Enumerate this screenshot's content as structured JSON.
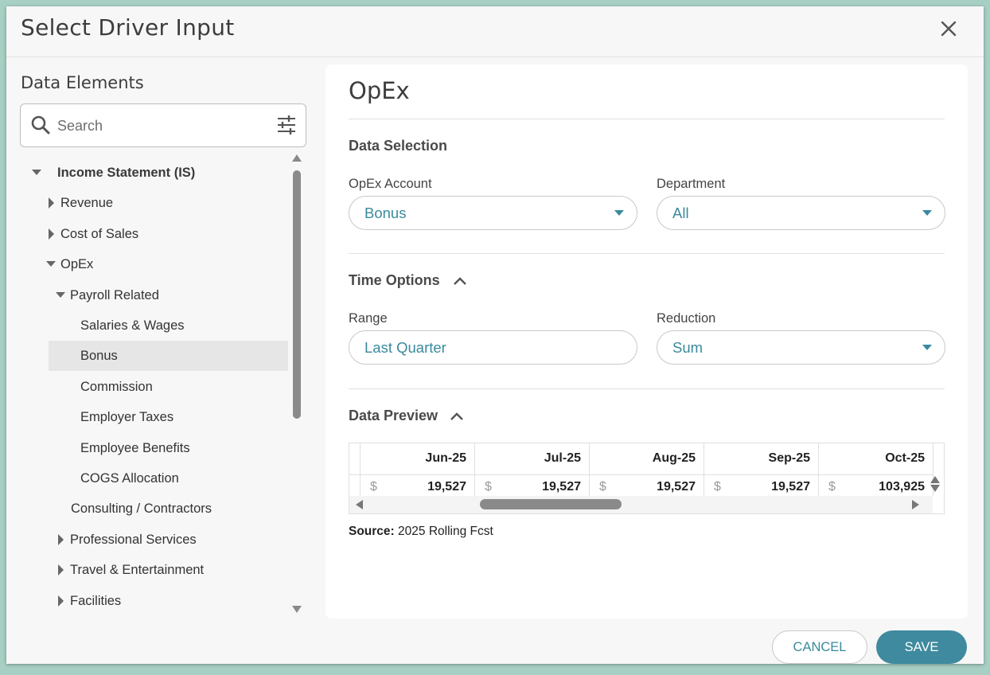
{
  "dialog": {
    "title": "Select Driver Input",
    "close_icon": "close-icon"
  },
  "left_panel": {
    "title": "Data Elements",
    "search": {
      "placeholder": "Search",
      "value": ""
    },
    "tree": [
      {
        "label": "Income Statement (IS)",
        "level": 0,
        "state": "expanded",
        "bold": true
      },
      {
        "label": "Revenue",
        "level": 1,
        "state": "collapsed"
      },
      {
        "label": "Cost of Sales",
        "level": 1,
        "state": "collapsed"
      },
      {
        "label": "OpEx",
        "level": 1,
        "state": "expanded"
      },
      {
        "label": "Payroll Related",
        "level": 2,
        "state": "expanded"
      },
      {
        "label": "Salaries & Wages",
        "level": 3,
        "state": "leaf"
      },
      {
        "label": "Bonus",
        "level": 3,
        "state": "leaf",
        "selected": true
      },
      {
        "label": "Commission",
        "level": 3,
        "state": "leaf"
      },
      {
        "label": "Employer Taxes",
        "level": 3,
        "state": "leaf"
      },
      {
        "label": "Employee Benefits",
        "level": 3,
        "state": "leaf"
      },
      {
        "label": "COGS Allocation",
        "level": 3,
        "state": "leaf"
      },
      {
        "label": "Consulting / Contractors",
        "level": 2,
        "state": "leaf"
      },
      {
        "label": "Professional Services",
        "level": 2,
        "state": "collapsed"
      },
      {
        "label": "Travel & Entertainment",
        "level": 2,
        "state": "collapsed"
      },
      {
        "label": "Facilities",
        "level": 2,
        "state": "collapsed"
      }
    ]
  },
  "right_panel": {
    "title": "OpEx",
    "data_selection": {
      "title": "Data Selection",
      "opex_account": {
        "label": "OpEx Account",
        "value": "Bonus"
      },
      "department": {
        "label": "Department",
        "value": "All"
      }
    },
    "time_options": {
      "title": "Time Options",
      "range": {
        "label": "Range",
        "value": "Last Quarter"
      },
      "reduction": {
        "label": "Reduction",
        "value": "Sum"
      }
    },
    "data_preview": {
      "title": "Data Preview",
      "columns": [
        {
          "month": "Jun-25",
          "currency": "$",
          "value": "19,527"
        },
        {
          "month": "Jul-25",
          "currency": "$",
          "value": "19,527"
        },
        {
          "month": "Aug-25",
          "currency": "$",
          "value": "19,527"
        },
        {
          "month": "Sep-25",
          "currency": "$",
          "value": "19,527"
        },
        {
          "month": "Oct-25",
          "currency": "$",
          "value": "103,925"
        }
      ]
    },
    "source": {
      "label": "Source:",
      "value": "2025 Rolling Fcst"
    }
  },
  "footer": {
    "cancel_label": "CANCEL",
    "save_label": "SAVE"
  },
  "colors": {
    "accent": "#3f8a9e",
    "value_text": "#3a8a9c",
    "backdrop": "#a8cfc4"
  }
}
